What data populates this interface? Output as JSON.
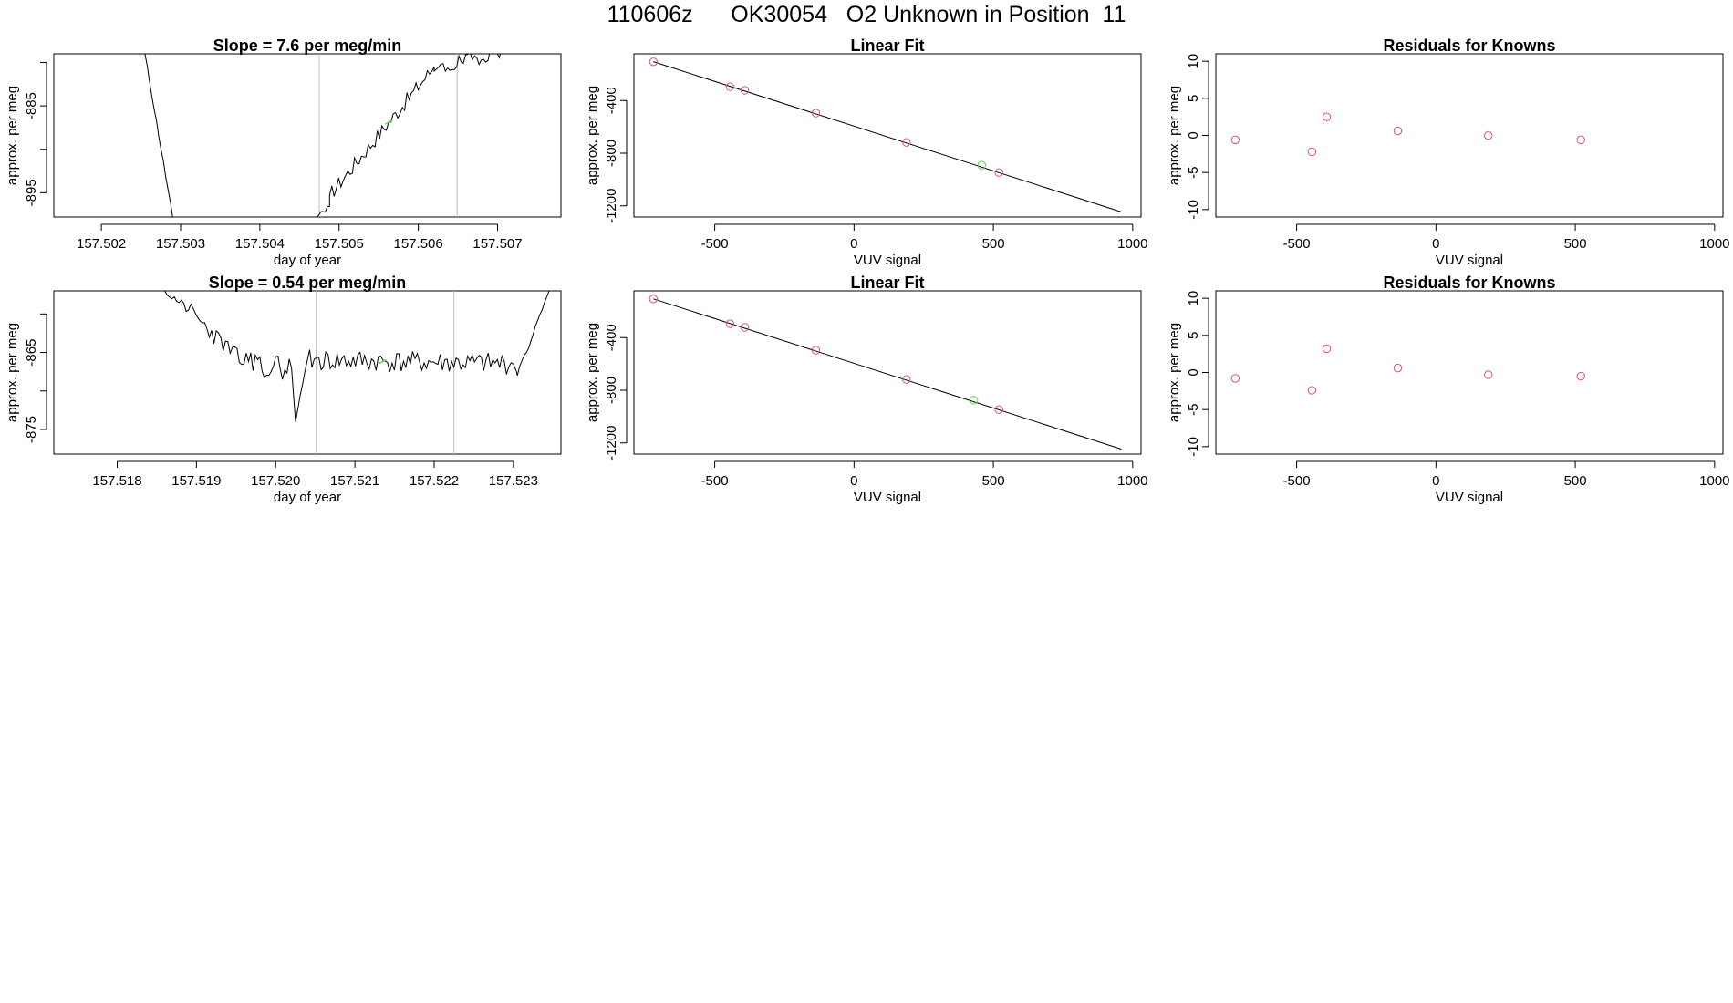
{
  "title": "110606z      OK30054   O2 Unknown in Position  11",
  "chart_data": [
    {
      "id": "ts1",
      "type": "line",
      "title": "Slope =  7.6  per meg/min",
      "xlabel": "day of year",
      "ylabel": "approx. per meg",
      "xlim": [
        157.5014,
        157.5078
      ],
      "ylim": [
        -897.8,
        -879.0
      ],
      "xticks": [
        157.502,
        157.503,
        157.504,
        157.505,
        157.506,
        157.507
      ],
      "xtick_labels": [
        "157.502",
        "157.503",
        "157.504",
        "157.505",
        "157.506",
        "157.507"
      ],
      "yticks": [
        -895,
        -890,
        -885,
        -880
      ],
      "ytick_labels": [
        "-895",
        "",
        "-885",
        ""
      ],
      "vlines": [
        157.50475,
        157.50649
      ],
      "highlight_x": 157.50563,
      "segments": [
        {
          "x0": 157.50255,
          "x1": 157.5029,
          "y0": -879,
          "y1": -897.8,
          "seed": 11,
          "noise": 0.25
        },
        {
          "x0": 157.50472,
          "x1": 157.50488,
          "y0": -897.8,
          "y1": -896.6,
          "seed": 13,
          "noise": 0.3
        },
        {
          "x0": 157.50488,
          "x1": 157.5062,
          "y0": -895.3,
          "y1": -880.5,
          "seed": 17,
          "noise": 0.9
        },
        {
          "x0": 157.5062,
          "x1": 157.50705,
          "y0": -881.0,
          "y1": -878.5,
          "seed": 19,
          "noise": 0.9
        }
      ]
    },
    {
      "id": "fit1",
      "type": "scatter",
      "title": "Linear Fit",
      "xlabel": "VUV signal",
      "ylabel": "approx. per meg",
      "xlim": [
        -790,
        1030
      ],
      "ylim": [
        -1285,
        -45
      ],
      "xticks": [
        -500,
        0,
        500,
        1000
      ],
      "xtick_labels": [
        "-500",
        "0",
        "500",
        "1000"
      ],
      "yticks": [
        -1200,
        -800,
        -400
      ],
      "ytick_labels": [
        "-1200",
        "-800",
        "-400"
      ],
      "line": {
        "x0": -720,
        "y0": -105,
        "x1": 960,
        "y1": -1247
      },
      "knowns": {
        "x": [
          -720,
          -445,
          -392,
          -137,
          188,
          520
        ],
        "y": [
          -106,
          -295,
          -322,
          -496,
          -718,
          -947
        ]
      },
      "unknown": {
        "x": [
          458
        ],
        "y": [
          -891
        ]
      }
    },
    {
      "id": "res1",
      "type": "scatter",
      "title": "Residuals for Knowns",
      "xlabel": "VUV signal",
      "ylabel": "approx. per meg",
      "xlim": [
        -790,
        1030
      ],
      "ylim": [
        -11,
        11
      ],
      "xticks": [
        -500,
        0,
        500,
        1000
      ],
      "xtick_labels": [
        "-500",
        "0",
        "500",
        "1000"
      ],
      "yticks": [
        -10,
        -5,
        0,
        5,
        10
      ],
      "ytick_labels": [
        "-10",
        "-5",
        "0",
        "5",
        "10"
      ],
      "points": {
        "x": [
          -720,
          -445,
          -392,
          -137,
          188,
          520
        ],
        "y": [
          -0.6,
          -2.2,
          2.5,
          0.6,
          0.0,
          -0.6
        ]
      }
    },
    {
      "id": "ts2",
      "type": "line",
      "title": "Slope =  0.54  per meg/min",
      "xlabel": "day of year",
      "ylabel": "approx. per meg",
      "xlim": [
        157.5172,
        157.5236
      ],
      "ylim": [
        -878.2,
        -857.0
      ],
      "xticks": [
        157.518,
        157.519,
        157.52,
        157.521,
        157.522,
        157.523
      ],
      "xtick_labels": [
        "157.518",
        "157.519",
        "157.520",
        "157.521",
        "157.522",
        "157.523"
      ],
      "yticks": [
        -875,
        -870,
        -865,
        -860
      ],
      "ytick_labels": [
        "-875",
        "",
        "-865",
        ""
      ],
      "vlines": [
        157.52051,
        157.52225
      ],
      "highlight_x": 157.52135,
      "segments": [
        {
          "x0": 157.5186,
          "x1": 157.5189,
          "y0": -857.0,
          "y1": -859.5,
          "seed": 21,
          "noise": 0.6
        },
        {
          "x0": 157.5189,
          "x1": 157.5196,
          "y0": -859.5,
          "y1": -866.5,
          "seed": 23,
          "noise": 1.2
        },
        {
          "x0": 157.5196,
          "x1": 157.5202,
          "y0": -866.5,
          "y1": -867.0,
          "seed": 29,
          "noise": 1.6
        },
        {
          "x0": 157.5202,
          "x1": 157.52025,
          "y0": -867.0,
          "y1": -874.0,
          "seed": 31,
          "noise": 0.1
        },
        {
          "x0": 157.52025,
          "x1": 157.5204,
          "y0": -874.0,
          "y1": -866.0,
          "seed": 37,
          "noise": 0.3
        },
        {
          "x0": 157.5204,
          "x1": 157.523,
          "y0": -866.0,
          "y1": -866.5,
          "seed": 41,
          "noise": 1.4
        },
        {
          "x0": 157.523,
          "x1": 157.52305,
          "y0": -866.5,
          "y1": -868.0,
          "seed": 43,
          "noise": 0.2
        },
        {
          "x0": 157.52305,
          "x1": 157.52345,
          "y0": -868.0,
          "y1": -857.0,
          "seed": 47,
          "noise": 0.4
        }
      ]
    },
    {
      "id": "fit2",
      "type": "scatter",
      "title": "Linear Fit",
      "xlabel": "VUV signal",
      "ylabel": "approx. per meg",
      "xlim": [
        -790,
        1030
      ],
      "ylim": [
        -1285,
        -45
      ],
      "xticks": [
        -500,
        0,
        500,
        1000
      ],
      "xtick_labels": [
        "-500",
        "0",
        "500",
        "1000"
      ],
      "yticks": [
        -1200,
        -800,
        -400
      ],
      "ytick_labels": [
        "-1200",
        "-800",
        "-400"
      ],
      "line": {
        "x0": -720,
        "y0": -106,
        "x1": 960,
        "y1": -1248
      },
      "knowns": {
        "x": [
          -720,
          -445,
          -392,
          -137,
          188,
          520
        ],
        "y": [
          -106,
          -295,
          -322,
          -496,
          -718,
          -947
        ]
      },
      "unknown": {
        "x": [
          430
        ],
        "y": [
          -875
        ]
      }
    },
    {
      "id": "res2",
      "type": "scatter",
      "title": "Residuals for Knowns",
      "xlabel": "VUV signal",
      "ylabel": "approx. per meg",
      "xlim": [
        -790,
        1030
      ],
      "ylim": [
        -11,
        11
      ],
      "xticks": [
        -500,
        0,
        500,
        1000
      ],
      "xtick_labels": [
        "-500",
        "0",
        "500",
        "1000"
      ],
      "yticks": [
        -10,
        -5,
        0,
        5,
        10
      ],
      "ytick_labels": [
        "-10",
        "-5",
        "0",
        "5",
        "10"
      ],
      "points": {
        "x": [
          -720,
          -445,
          -392,
          -137,
          188,
          520
        ],
        "y": [
          -0.8,
          -2.4,
          3.2,
          0.6,
          -0.3,
          -0.5
        ]
      }
    }
  ],
  "colors": {
    "knowns": "#df536b",
    "unknown": "#61d04f",
    "line": "#000000",
    "vline": "#bebebe"
  }
}
